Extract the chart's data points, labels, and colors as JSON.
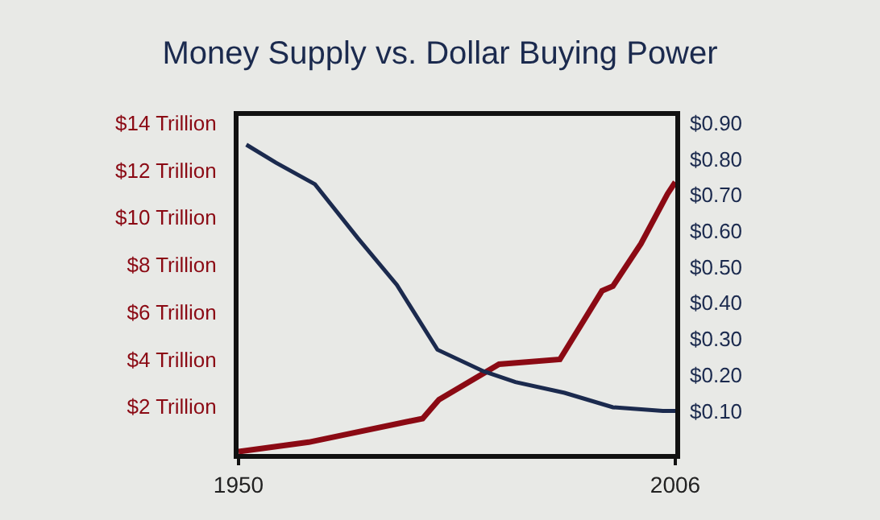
{
  "chart_data": {
    "type": "line",
    "title": "Money Supply vs. Dollar Buying Power",
    "xlim": [
      1950,
      2006
    ],
    "xticks": [
      1950,
      2006
    ],
    "ylim": [
      0,
      14.3
    ],
    "yticks": [
      {
        "value": 2,
        "label": "$2 Trillion"
      },
      {
        "value": 4,
        "label": "$4 Trillion"
      },
      {
        "value": 6,
        "label": "$6 Trillion"
      },
      {
        "value": 8,
        "label": "$8 Trillion"
      },
      {
        "value": 10,
        "label": "$10 Trillion"
      },
      {
        "value": 12,
        "label": "$12 Trillion"
      },
      {
        "value": 14,
        "label": "$14 Trillion"
      }
    ],
    "y2lim": [
      -0.02,
      0.92
    ],
    "y2ticks": [
      {
        "value": 0.1,
        "label": "$0.10"
      },
      {
        "value": 0.2,
        "label": "$0.20"
      },
      {
        "value": 0.3,
        "label": "$0.30"
      },
      {
        "value": 0.4,
        "label": "$0.40"
      },
      {
        "value": 0.5,
        "label": "$0.50"
      },
      {
        "value": 0.6,
        "label": "$0.60"
      },
      {
        "value": 0.7,
        "label": "$0.70"
      },
      {
        "value": 0.8,
        "label": "$0.80"
      },
      {
        "value": 0.9,
        "label": "$0.90"
      }
    ],
    "grid": false,
    "marker": "none",
    "line_style": "solid",
    "series": [
      {
        "color": "#8b0a14",
        "x": [
          1950,
          1959,
          1973.6,
          1975.7,
          1983.4,
          1991.2,
          1996.6,
          1998,
          2001.6,
          2005,
          2006
        ],
        "values": [
          0.1,
          0.5,
          1.5,
          2.3,
          3.8,
          4.0,
          6.9,
          7.1,
          8.9,
          11.0,
          11.5
        ]
      },
      {
        "color": "#1b2a4e",
        "axis": "y2",
        "x": [
          1951,
          1954.8,
          1959.8,
          1965.3,
          1970.3,
          1975.5,
          1981.4,
          1985.5,
          1991.8,
          1998,
          2004.4,
          2006
        ],
        "values": [
          0.84,
          0.79,
          0.73,
          0.58,
          0.45,
          0.27,
          0.21,
          0.18,
          0.15,
          0.11,
          0.1,
          0.1
        ]
      }
    ]
  }
}
